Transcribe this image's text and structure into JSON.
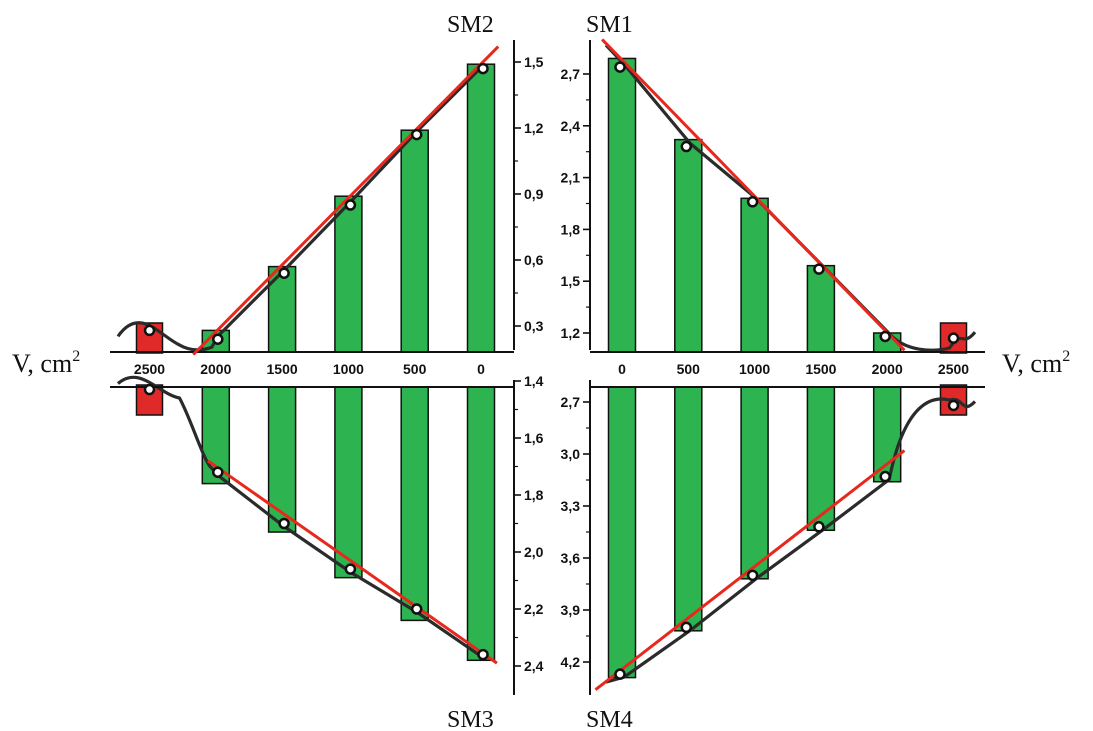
{
  "colors": {
    "bar": "#2db34f",
    "bar_outline": "#111111",
    "fit_line": "#e8281c",
    "curve": "#2b2b2b",
    "extra_bar": "#e02a2a"
  },
  "axis": {
    "x_label": "V, cm",
    "x_label_sup": "2"
  },
  "chart_data": [
    {
      "type": "bar",
      "title": "SM2",
      "x_ticks": [
        "2500",
        "2000",
        "1500",
        "1000",
        "500",
        "0"
      ],
      "y_ticks": [
        "0,3",
        "0,6",
        "0,9",
        "1,2",
        "1,5"
      ],
      "x": [
        2000,
        1500,
        1000,
        500,
        0
      ],
      "values": [
        0.28,
        0.57,
        0.89,
        1.19,
        1.49
      ],
      "markers": [
        0.24,
        0.54,
        0.85,
        1.17,
        1.47
      ],
      "fit_line": [
        [
          2170,
          0.17
        ],
        [
          -130,
          1.57
        ]
      ],
      "extra_point": {
        "x": 2500,
        "y": 0.28
      },
      "ylim": [
        0.12,
        1.62
      ],
      "xlim": [
        2800,
        -300
      ]
    },
    {
      "type": "bar",
      "title": "SM1",
      "x_ticks": [
        "0",
        "500",
        "1000",
        "1500",
        "2000",
        "2500"
      ],
      "y_ticks": [
        "1,2",
        "1,5",
        "1,8",
        "2,1",
        "2,4",
        "2,7"
      ],
      "x": [
        0,
        500,
        1000,
        1500,
        2000
      ],
      "values": [
        2.79,
        2.32,
        1.98,
        1.59,
        1.2
      ],
      "markers": [
        2.74,
        2.28,
        1.96,
        1.57,
        1.18
      ],
      "fit_line": [
        [
          -150,
          2.9
        ],
        [
          2130,
          1.1
        ]
      ],
      "extra_point": {
        "x": 2500,
        "y": 1.17
      },
      "ylim": [
        1.08,
        2.9
      ],
      "xlim": [
        -300,
        2800
      ]
    },
    {
      "type": "bar",
      "title": "SM3",
      "x_ticks": [
        "2500",
        "2000",
        "1500",
        "1000",
        "500",
        "0"
      ],
      "y_ticks": [
        "1,4",
        "1,6",
        "1,8",
        "2,0",
        "2,2",
        "2,4"
      ],
      "x": [
        2000,
        1500,
        1000,
        500,
        0
      ],
      "values": [
        -1.76,
        -1.93,
        -2.09,
        -2.24,
        -2.38
      ],
      "markers": [
        -1.72,
        -1.9,
        -2.06,
        -2.2,
        -2.36
      ],
      "fit_line": [
        [
          2060,
          -1.68
        ],
        [
          -120,
          -2.39
        ]
      ],
      "extra_point": {
        "x": 2500,
        "y": -1.43
      },
      "ylim": [
        -2.48,
        -1.4
      ],
      "xlim": [
        2800,
        -300
      ]
    },
    {
      "type": "bar",
      "title": "SM4",
      "x_ticks": [
        "0",
        "500",
        "1000",
        "1500",
        "2000",
        "2500"
      ],
      "y_ticks": [
        "2,7",
        "3,0",
        "3,3",
        "3,6",
        "3,9",
        "4,2"
      ],
      "x": [
        0,
        500,
        1000,
        1500,
        2000
      ],
      "values": [
        4.29,
        4.02,
        3.72,
        3.44,
        3.16
      ],
      "markers": [
        4.27,
        4.0,
        3.7,
        3.42,
        3.13
      ],
      "fit_line": [
        [
          -200,
          4.36
        ],
        [
          2130,
          2.98
        ]
      ],
      "extra_point": {
        "x": 2500,
        "y": 2.72
      },
      "ylim": [
        2.6,
        4.37
      ],
      "xlim": [
        -300,
        2800
      ]
    }
  ]
}
